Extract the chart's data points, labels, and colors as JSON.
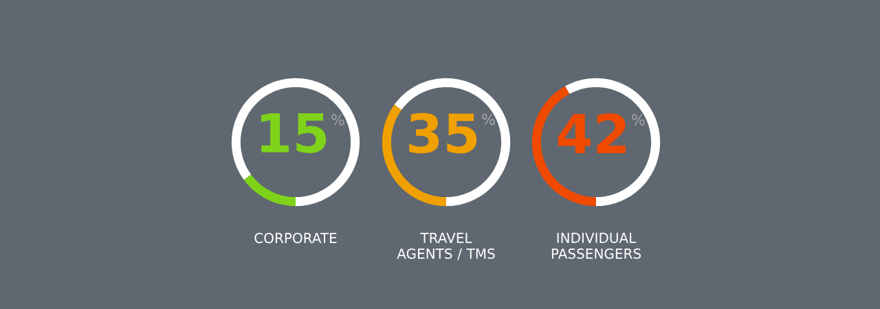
{
  "chart_data": [
    {
      "type": "donut",
      "title": "CORPORATE",
      "categories": [
        null,
        null
      ],
      "values": [
        15,
        85
      ],
      "colors": [
        "#7ed31a",
        "#ffffff"
      ],
      "annotations": [
        "15",
        "%"
      ]
    },
    {
      "type": "donut",
      "title": "TRAVEL AGENTS / TMS",
      "categories": [
        null,
        null
      ],
      "values": [
        35,
        65
      ],
      "colors": [
        "#f0a000",
        "#ffffff"
      ],
      "annotations": [
        "35",
        "%"
      ]
    },
    {
      "type": "donut",
      "title": "INDIVIDUAL PASSENGERS",
      "categories": [
        null,
        null
      ],
      "values": [
        42,
        58
      ],
      "colors": [
        "#ef4a00",
        "#ffffff"
      ],
      "annotations": [
        "42",
        "%"
      ]
    }
  ]
}
